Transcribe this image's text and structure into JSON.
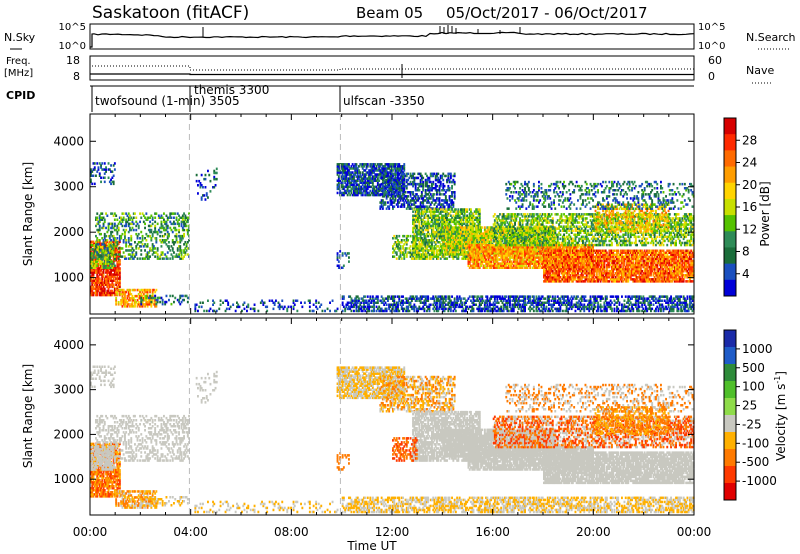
{
  "header": {
    "station": "Saskatoon (fitACF)",
    "beam": "Beam 05",
    "dates": "05/Oct/2017 - 06/Oct/2017"
  },
  "chart_data": [
    {
      "type": "line",
      "panel": "noise",
      "left_label": "N.Sky",
      "right_label": "N.Search",
      "left_ticks": [
        "10^5",
        "10^0"
      ],
      "right_ticks": [
        "10^5",
        "10^0"
      ],
      "scale": "log"
    },
    {
      "type": "line",
      "panel": "frequency",
      "left_label_1": "Freq.",
      "left_label_2": "[MHz]",
      "right_label": "Nave",
      "left_ticks": [
        "18",
        "8"
      ],
      "right_ticks": [
        "60",
        "0"
      ]
    },
    {
      "type": "table",
      "panel": "cpid",
      "label": "CPID",
      "modes": [
        {
          "start_hour": 0.0,
          "label": "twofsound (1-min) 3505"
        },
        {
          "start_hour": 3.95,
          "label": "themis 3300"
        },
        {
          "start_hour": 9.95,
          "label": "ulfscan -3350"
        }
      ]
    },
    {
      "type": "heatmap",
      "panel": "power",
      "ylabel": "Slant Range [km]",
      "ylim": [
        200,
        4600
      ],
      "yticks": [
        1000,
        2000,
        3000,
        4000
      ],
      "xlim": [
        0,
        24
      ],
      "colorbar": {
        "label": "Power [dB]",
        "ticks": [
          "28",
          "24",
          "20",
          "16",
          "12",
          "8",
          "4"
        ],
        "colors": [
          "#d60000",
          "#ff2a00",
          "#ff6a00",
          "#ff9d00",
          "#ffd400",
          "#c8e000",
          "#55c200",
          "#2e8b57",
          "#1a6d3a",
          "#1a4fbf",
          "#0000d8"
        ]
      }
    },
    {
      "type": "heatmap",
      "panel": "velocity",
      "ylabel": "Slant Range [km]",
      "ylim": [
        200,
        4600
      ],
      "yticks": [
        1000,
        2000,
        3000,
        4000
      ],
      "xlim": [
        0,
        24
      ],
      "xticks": [
        "00:00",
        "04:00",
        "08:00",
        "12:00",
        "16:00",
        "20:00",
        "00:00"
      ],
      "xlabel": "Time UT",
      "colorbar": {
        "label": "Velocity [m s",
        "label_sup": "-1",
        "label_end": "]",
        "ticks": [
          "1000",
          "500",
          "100",
          "25",
          "-25",
          "-100",
          "-500",
          "-1000"
        ],
        "colors": [
          "#1a2aa8",
          "#1f5cc8",
          "#2e8b3a",
          "#4fbf2a",
          "#8fdc4a",
          "#c8c8c0",
          "#ffb000",
          "#ff7a00",
          "#ff3a00",
          "#e00000"
        ]
      }
    }
  ]
}
